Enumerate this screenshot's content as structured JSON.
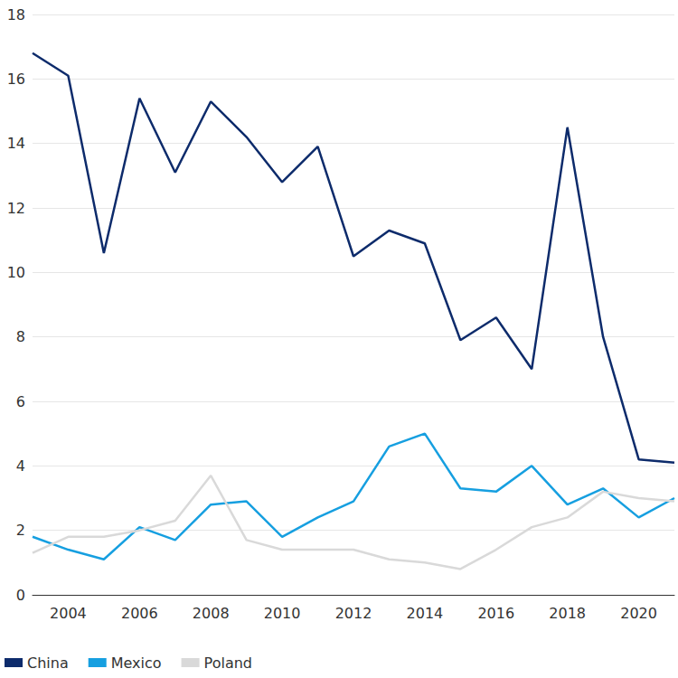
{
  "chart_data": {
    "type": "line",
    "x": [
      2003,
      2004,
      2005,
      2006,
      2007,
      2008,
      2009,
      2010,
      2011,
      2012,
      2013,
      2014,
      2015,
      2016,
      2017,
      2018,
      2019,
      2020,
      2021
    ],
    "series": [
      {
        "name": "China",
        "color": "#0d2b6b",
        "values": [
          16.8,
          16.1,
          10.6,
          15.4,
          13.1,
          15.3,
          14.2,
          12.8,
          13.9,
          10.5,
          11.3,
          10.9,
          7.9,
          8.6,
          7.0,
          14.5,
          8.0,
          4.2,
          4.1
        ]
      },
      {
        "name": "Mexico",
        "color": "#169fe0",
        "values": [
          1.8,
          1.4,
          1.1,
          2.1,
          1.7,
          2.8,
          2.9,
          1.8,
          2.4,
          2.9,
          4.6,
          5.0,
          3.3,
          3.2,
          4.0,
          2.8,
          3.3,
          2.4,
          3.0
        ]
      },
      {
        "name": "Poland",
        "color": "#d9d9d9",
        "values": [
          1.3,
          1.8,
          1.8,
          2.0,
          2.3,
          3.7,
          1.7,
          1.4,
          1.4,
          1.4,
          1.1,
          1.0,
          0.8,
          1.4,
          2.1,
          2.4,
          3.2,
          3.0,
          2.9
        ]
      }
    ],
    "xlim": [
      2003,
      2021
    ],
    "xticks": [
      2004,
      2006,
      2008,
      2010,
      2012,
      2014,
      2016,
      2018,
      2020
    ],
    "ylim": [
      0,
      18
    ],
    "yticks": [
      0,
      2,
      4,
      6,
      8,
      10,
      12,
      14,
      16,
      18
    ],
    "grid": true,
    "legend": "bottom"
  }
}
